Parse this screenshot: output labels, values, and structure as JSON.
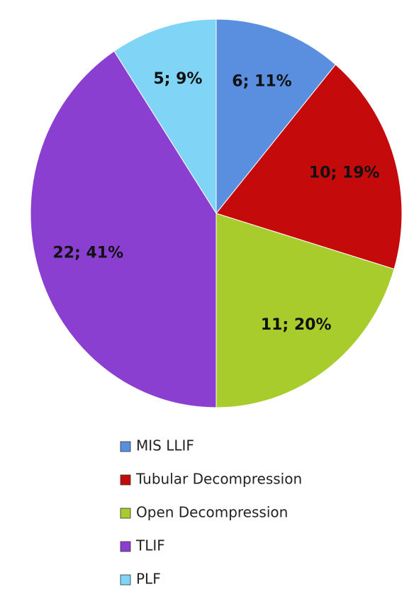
{
  "chart_data": {
    "type": "pie",
    "categories": [
      "MIS LLIF",
      "Tubular Decompression",
      "Open Decompression",
      "TLIF",
      "PLF"
    ],
    "values": [
      6,
      10,
      11,
      22,
      5
    ],
    "value_labels": [
      "6; 11%",
      "10; 19%",
      "11; 20%",
      "22; 41%",
      "5; 9%"
    ],
    "colors": [
      "#5a8fe0",
      "#c40a0a",
      "#a8cc2c",
      "#8b3fd0",
      "#80d4f6"
    ]
  }
}
